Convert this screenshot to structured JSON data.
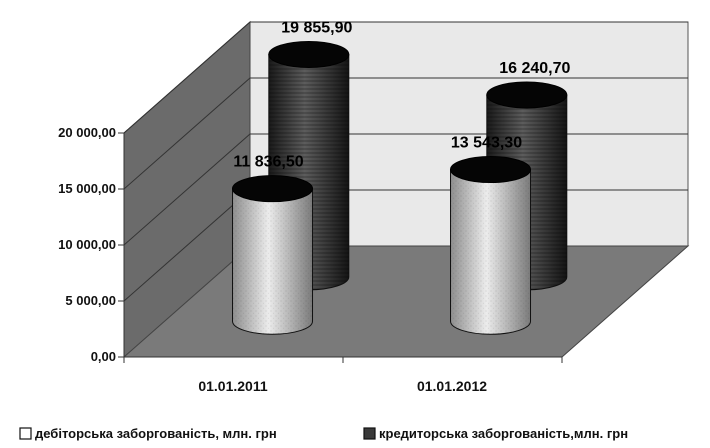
{
  "chart_data": {
    "type": "bar",
    "style": "3d-cylinder",
    "categories": [
      "01.01.2011",
      "01.01.2012"
    ],
    "series": [
      {
        "name": "дебіторська заборгованість, млн. грн",
        "values": [
          11836.5,
          13543.3
        ],
        "data_labels": [
          "11 836,50",
          "13 543,30"
        ],
        "color": "#d4d4d4"
      },
      {
        "name": "кредиторська заборгованість,млн. грн",
        "values": [
          19855.9,
          16240.7
        ],
        "data_labels": [
          "19 855,90",
          "16 240,70"
        ],
        "color": "#3a3a3a"
      }
    ],
    "ylim": [
      0,
      20000
    ],
    "yticks": [
      0,
      5000,
      10000,
      15000,
      20000
    ],
    "ytick_labels": [
      "0,00",
      "5 000,00",
      "10 000,00",
      "15 000,00",
      "20 000,00"
    ],
    "grid": true,
    "legend_position": "bottom",
    "title": "",
    "xlabel": "",
    "ylabel": ""
  }
}
